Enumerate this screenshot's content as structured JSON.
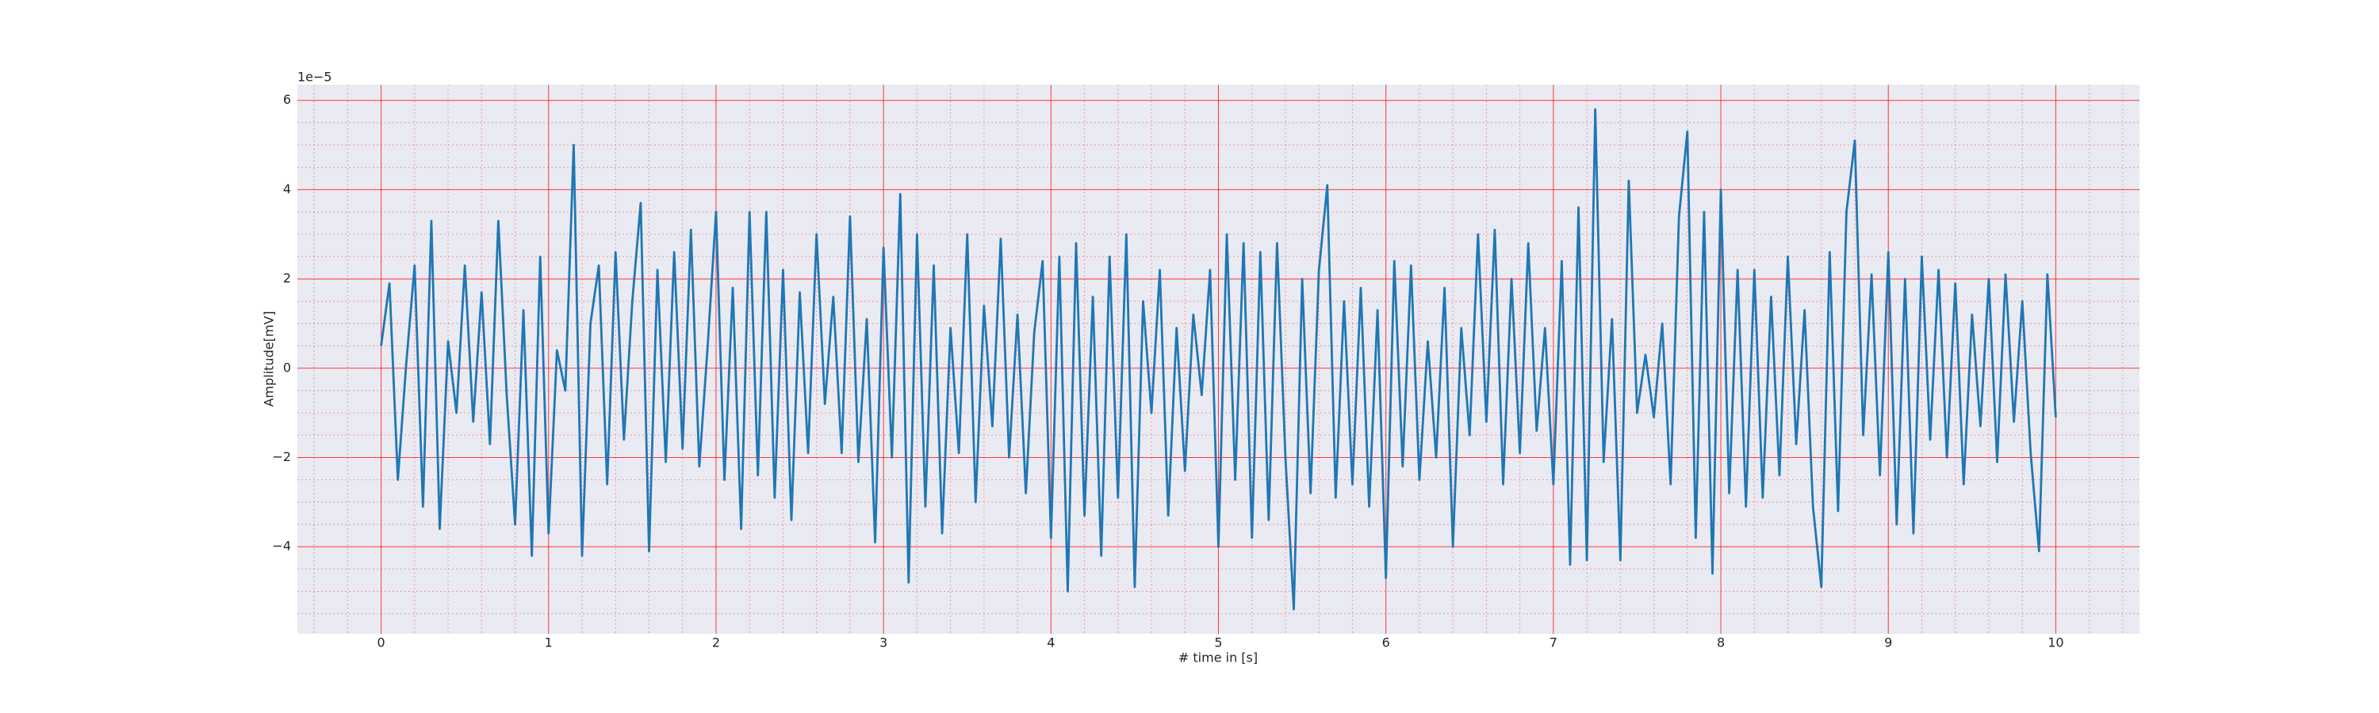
{
  "chart_data": {
    "type": "line",
    "offset_text": "1e−5",
    "xlabel": "# time in [s]",
    "ylabel": "Amplitude[mV]",
    "color": "#1f77b4",
    "grid": true,
    "minor_grid": true,
    "xlim": [
      -0.5,
      10.5
    ],
    "ylim": [
      -5.95,
      6.35
    ],
    "xticks": [
      0,
      1,
      2,
      3,
      4,
      5,
      6,
      7,
      8,
      9,
      10
    ],
    "yticks": [
      {
        "value": -4,
        "label": "−4"
      },
      {
        "value": -2,
        "label": "−2"
      },
      0,
      2,
      4,
      6
    ],
    "xminorticks": [
      -0.4,
      -0.2,
      0.2,
      0.4,
      0.6,
      0.8,
      1.2,
      1.4,
      1.6,
      1.8,
      2.2,
      2.4,
      2.6,
      2.8,
      3.2,
      3.4,
      3.6,
      3.8,
      4.2,
      4.4,
      4.6,
      4.8,
      5.2,
      5.4,
      5.6,
      5.8,
      6.2,
      6.4,
      6.6,
      6.8,
      7.2,
      7.4,
      7.6,
      7.8,
      8.2,
      8.4,
      8.6,
      8.8,
      9.2,
      9.4,
      9.6,
      9.8,
      10.2,
      10.4
    ],
    "yminorticks": [
      -5.5,
      -5,
      -4.5,
      -3.5,
      -3,
      -2.5,
      -1.5,
      -1,
      -0.5,
      0.5,
      1,
      1.5,
      2.5,
      3,
      3.5,
      4.5,
      5,
      5.5
    ],
    "x": [
      0,
      0.05,
      0.1,
      0.15,
      0.2,
      0.25,
      0.3,
      0.35,
      0.4,
      0.45,
      0.5,
      0.55,
      0.6,
      0.65,
      0.7,
      0.75,
      0.8,
      0.85,
      0.9,
      0.95,
      1,
      1.05,
      1.1,
      1.15,
      1.2,
      1.25,
      1.3,
      1.35,
      1.4,
      1.45,
      1.5,
      1.55,
      1.6,
      1.65,
      1.7,
      1.75,
      1.8,
      1.85,
      1.9,
      1.95,
      2,
      2.05,
      2.1,
      2.15,
      2.2,
      2.25,
      2.3,
      2.35,
      2.4,
      2.45,
      2.5,
      2.55,
      2.6,
      2.65,
      2.7,
      2.75,
      2.8,
      2.85,
      2.9,
      2.95,
      3,
      3.05,
      3.1,
      3.15,
      3.2,
      3.25,
      3.3,
      3.35,
      3.4,
      3.45,
      3.5,
      3.55,
      3.6,
      3.65,
      3.7,
      3.75,
      3.8,
      3.85,
      3.9,
      3.95,
      4,
      4.05,
      4.1,
      4.15,
      4.2,
      4.25,
      4.3,
      4.35,
      4.4,
      4.45,
      4.5,
      4.55,
      4.6,
      4.65,
      4.7,
      4.75,
      4.8,
      4.85,
      4.9,
      4.95,
      5,
      5.05,
      5.1,
      5.15,
      5.2,
      5.25,
      5.3,
      5.35,
      5.4,
      5.45,
      5.5,
      5.55,
      5.6,
      5.65,
      5.7,
      5.75,
      5.8,
      5.85,
      5.9,
      5.95,
      6,
      6.05,
      6.1,
      6.15,
      6.2,
      6.25,
      6.3,
      6.35,
      6.4,
      6.45,
      6.5,
      6.55,
      6.6,
      6.65,
      6.7,
      6.75,
      6.8,
      6.85,
      6.9,
      6.95,
      7,
      7.05,
      7.1,
      7.15,
      7.2,
      7.25,
      7.3,
      7.35,
      7.4,
      7.45,
      7.5,
      7.55,
      7.6,
      7.65,
      7.7,
      7.75,
      7.8,
      7.85,
      7.9,
      7.95,
      8,
      8.05,
      8.1,
      8.15,
      8.2,
      8.25,
      8.3,
      8.35,
      8.4,
      8.45,
      8.5,
      8.55,
      8.6,
      8.65,
      8.7,
      8.75,
      8.8,
      8.85,
      8.9,
      8.95,
      9,
      9.05,
      9.1,
      9.15,
      9.2,
      9.25,
      9.3,
      9.35,
      9.4,
      9.45,
      9.5,
      9.55,
      9.6,
      9.65,
      9.7,
      9.75,
      9.8,
      9.85,
      9.9,
      9.95,
      10
    ],
    "values": [
      0.5,
      1.9,
      -2.5,
      0.1,
      2.3,
      -3.1,
      3.3,
      -3.6,
      0.6,
      -1.0,
      2.3,
      -1.2,
      1.7,
      -1.7,
      3.3,
      -0.6,
      -3.5,
      1.3,
      -4.2,
      2.5,
      -3.7,
      0.4,
      -0.5,
      5.0,
      -4.2,
      1.0,
      2.3,
      -2.6,
      2.6,
      -1.6,
      1.5,
      3.7,
      -4.1,
      2.2,
      -2.1,
      2.6,
      -1.8,
      3.1,
      -2.2,
      0.5,
      3.5,
      -2.5,
      1.8,
      -3.6,
      3.5,
      -2.4,
      3.5,
      -2.9,
      2.2,
      -3.4,
      1.7,
      -1.9,
      3.0,
      -0.8,
      1.6,
      -1.9,
      3.4,
      -2.1,
      1.1,
      -3.9,
      2.7,
      -2.0,
      3.9,
      -4.8,
      3.0,
      -3.1,
      2.3,
      -3.7,
      0.9,
      -1.9,
      3.0,
      -3.0,
      1.4,
      -1.3,
      2.9,
      -2.0,
      1.2,
      -2.8,
      0.8,
      2.4,
      -3.8,
      2.5,
      -5.0,
      2.8,
      -3.3,
      1.6,
      -4.2,
      2.5,
      -2.9,
      3.0,
      -4.9,
      1.5,
      -1.0,
      2.2,
      -3.3,
      0.9,
      -2.3,
      1.2,
      -0.6,
      2.2,
      -4.0,
      3.0,
      -2.5,
      2.8,
      -3.8,
      2.6,
      -3.4,
      2.8,
      -2.0,
      -5.4,
      2.0,
      -2.8,
      2.2,
      4.1,
      -2.9,
      1.5,
      -2.6,
      1.8,
      -3.1,
      1.3,
      -4.7,
      2.4,
      -2.2,
      2.3,
      -2.5,
      0.6,
      -2.0,
      1.8,
      -4.0,
      0.9,
      -1.5,
      3.0,
      -1.2,
      3.1,
      -2.6,
      2.0,
      -1.9,
      2.8,
      -1.4,
      0.9,
      -2.6,
      2.4,
      -4.4,
      3.6,
      -4.3,
      5.8,
      -2.1,
      1.1,
      -4.3,
      4.2,
      -1.0,
      0.3,
      -1.1,
      1.0,
      -2.6,
      3.4,
      5.3,
      -3.8,
      3.5,
      -4.6,
      4.0,
      -2.8,
      2.2,
      -3.1,
      2.2,
      -2.9,
      1.6,
      -2.4,
      2.5,
      -1.7,
      1.3,
      -3.1,
      -4.9,
      2.6,
      -3.2,
      3.5,
      5.1,
      -1.5,
      2.1,
      -2.4,
      2.6,
      -3.5,
      2.0,
      -3.7,
      2.5,
      -1.6,
      2.2,
      -2.0,
      1.9,
      -2.6,
      1.2,
      -1.3,
      2.0,
      -2.1,
      2.1,
      -1.2,
      1.5,
      -1.9,
      -4.1,
      2.1,
      -1.1
    ]
  }
}
